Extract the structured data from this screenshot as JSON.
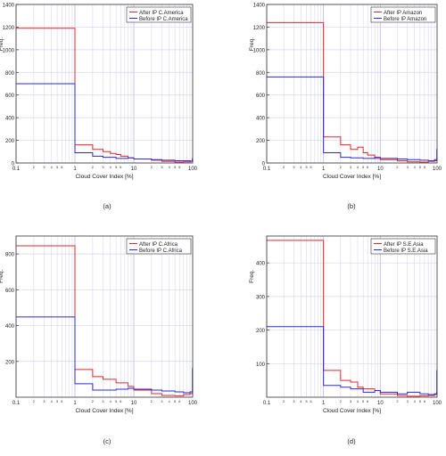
{
  "chart_data": [
    {
      "type": "line",
      "panel_label": "(a)",
      "xlabel": "Cloud Cover Index [%]",
      "ylabel": "Freq.",
      "x_scale": "log",
      "xlim": [
        0.1,
        100
      ],
      "ylim": [
        0,
        1400
      ],
      "y_ticks": [
        0,
        200,
        400,
        600,
        800,
        1000,
        1200,
        1400
      ],
      "legend_position": "top-right",
      "series": [
        {
          "name": "After IP C.America",
          "color": "#e8242b",
          "x": [
            0.1,
            1,
            1,
            2,
            2,
            3,
            3,
            4,
            4,
            5,
            5,
            6,
            6,
            8,
            8,
            10,
            10,
            20,
            20,
            30,
            30,
            50,
            50,
            70,
            70,
            90,
            90,
            99,
            99,
            100
          ],
          "y": [
            1190,
            1190,
            160,
            160,
            120,
            120,
            100,
            100,
            85,
            85,
            75,
            75,
            60,
            60,
            45,
            45,
            35,
            35,
            25,
            25,
            15,
            15,
            8,
            8,
            10,
            10,
            18,
            18,
            30,
            30
          ]
        },
        {
          "name": "Before IP C.America",
          "color": "#2a2ad6",
          "x": [
            0.1,
            1,
            1,
            2,
            2,
            3,
            3,
            5,
            5,
            8,
            8,
            10,
            10,
            20,
            20,
            30,
            30,
            50,
            50,
            70,
            70,
            90,
            90,
            99,
            99,
            100
          ],
          "y": [
            700,
            700,
            90,
            90,
            60,
            60,
            50,
            50,
            40,
            40,
            45,
            45,
            35,
            35,
            30,
            30,
            25,
            25,
            20,
            20,
            20,
            20,
            15,
            15,
            40,
            40
          ]
        }
      ]
    },
    {
      "type": "line",
      "panel_label": "(b)",
      "xlabel": "Cloud Cover Index [%]",
      "ylabel": "Freq.",
      "x_scale": "log",
      "xlim": [
        0.1,
        100
      ],
      "ylim": [
        0,
        1400
      ],
      "y_ticks": [
        0,
        200,
        400,
        600,
        800,
        1000,
        1200,
        1400
      ],
      "legend_position": "top-right",
      "series": [
        {
          "name": "After IP Amazon",
          "color": "#e8242b",
          "x": [
            0.1,
            1,
            1,
            2,
            2,
            3,
            3,
            4,
            4,
            5,
            5,
            6,
            6,
            8,
            8,
            10,
            10,
            20,
            20,
            30,
            30,
            50,
            50,
            70,
            70,
            90,
            90,
            99,
            99,
            100
          ],
          "y": [
            1240,
            1240,
            230,
            230,
            160,
            160,
            120,
            120,
            140,
            140,
            90,
            90,
            70,
            70,
            40,
            40,
            30,
            30,
            20,
            20,
            10,
            10,
            8,
            8,
            15,
            15,
            20,
            20,
            40,
            40
          ]
        },
        {
          "name": "Before IP Amazon",
          "color": "#2a2ad6",
          "x": [
            0.1,
            1,
            1,
            2,
            2,
            3,
            3,
            5,
            5,
            8,
            8,
            10,
            10,
            20,
            20,
            30,
            30,
            50,
            50,
            70,
            70,
            90,
            90,
            99,
            99,
            100
          ],
          "y": [
            760,
            760,
            90,
            90,
            50,
            50,
            45,
            45,
            40,
            40,
            50,
            50,
            40,
            40,
            35,
            35,
            30,
            30,
            25,
            25,
            20,
            20,
            30,
            30,
            120,
            120
          ]
        }
      ]
    },
    {
      "type": "line",
      "panel_label": "(c)",
      "xlabel": "Cloud Cover Index [%]",
      "ylabel": "Freq.",
      "x_scale": "log",
      "xlim": [
        0.1,
        100
      ],
      "ylim": [
        0,
        900
      ],
      "y_ticks": [
        200,
        400,
        600,
        800
      ],
      "legend_position": "top-right",
      "series": [
        {
          "name": "After IP C.Africa",
          "color": "#e8242b",
          "x": [
            0.1,
            1,
            1,
            2,
            2,
            3,
            3,
            5,
            5,
            8,
            8,
            10,
            10,
            20,
            20,
            30,
            30,
            50,
            50,
            70,
            70,
            90,
            90,
            99,
            99,
            100
          ],
          "y": [
            845,
            845,
            155,
            155,
            115,
            115,
            100,
            100,
            80,
            80,
            60,
            60,
            40,
            40,
            20,
            20,
            10,
            10,
            8,
            8,
            15,
            15,
            20,
            20,
            30,
            30
          ]
        },
        {
          "name": "Before IP C.Africa",
          "color": "#2a2ad6",
          "x": [
            0.1,
            1,
            1,
            2,
            2,
            3,
            3,
            5,
            5,
            8,
            8,
            10,
            10,
            20,
            20,
            30,
            30,
            50,
            50,
            70,
            70,
            90,
            90,
            99,
            99,
            100
          ],
          "y": [
            448,
            448,
            75,
            75,
            40,
            40,
            40,
            40,
            45,
            45,
            50,
            50,
            45,
            45,
            40,
            40,
            35,
            35,
            30,
            30,
            25,
            25,
            30,
            30,
            160,
            160
          ]
        }
      ]
    },
    {
      "type": "line",
      "panel_label": "(d)",
      "xlabel": "Cloud Cover Index [%]",
      "ylabel": "Freq.",
      "x_scale": "log",
      "xlim": [
        0.1,
        100
      ],
      "ylim": [
        0,
        480
      ],
      "y_ticks": [
        100,
        200,
        300,
        400
      ],
      "legend_position": "top-right",
      "series": [
        {
          "name": "After IP S.E.Asia",
          "color": "#e8242b",
          "x": [
            0.1,
            1,
            1,
            2,
            2,
            3,
            3,
            4,
            4,
            5,
            5,
            8,
            8,
            10,
            10,
            20,
            20,
            30,
            30,
            50,
            50,
            70,
            70,
            90,
            90,
            99,
            99,
            100
          ],
          "y": [
            467,
            467,
            80,
            80,
            50,
            50,
            45,
            45,
            30,
            30,
            25,
            25,
            20,
            20,
            10,
            10,
            5,
            5,
            3,
            3,
            4,
            4,
            5,
            5,
            8,
            8,
            15,
            15
          ]
        },
        {
          "name": "Before IP S.E.Asia",
          "color": "#2a2ad6",
          "x": [
            0.1,
            1,
            1,
            2,
            2,
            3,
            3,
            5,
            5,
            8,
            8,
            10,
            10,
            20,
            20,
            30,
            30,
            50,
            50,
            70,
            70,
            90,
            90,
            99,
            99,
            100
          ],
          "y": [
            210,
            210,
            35,
            35,
            30,
            30,
            25,
            25,
            15,
            15,
            20,
            20,
            15,
            15,
            10,
            10,
            15,
            15,
            10,
            10,
            8,
            8,
            10,
            10,
            80,
            80
          ]
        }
      ]
    }
  ]
}
